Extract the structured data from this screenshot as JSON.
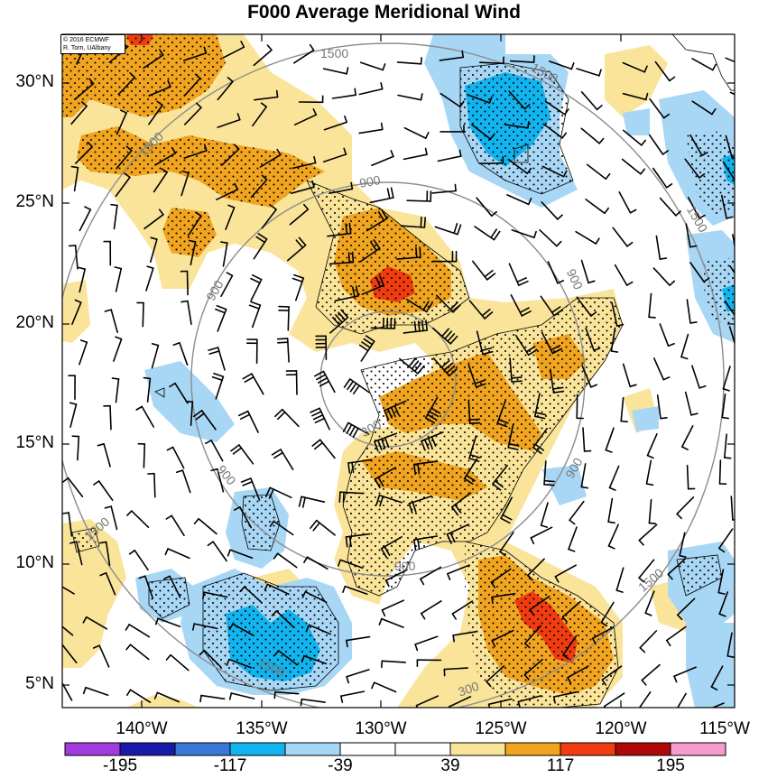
{
  "title": "F000 Average Meridional Wind",
  "credit": {
    "line1": "© 2016 ECMWF",
    "line2": "R. Torn, UAlbany"
  },
  "lat_labels": [
    "30°N",
    "25°N",
    "20°N",
    "15°N",
    "10°N",
    "5°N"
  ],
  "lon_labels": [
    "140°W",
    "135°W",
    "130°W",
    "125°W",
    "120°W",
    "115°W"
  ],
  "colorbar": {
    "colors": [
      "#a13be0",
      "#1a1aa8",
      "#3a78d8",
      "#12b4ef",
      "#a8d6f5",
      "#ffffff",
      "#ffffff",
      "#fae49a",
      "#f0a420",
      "#f03c10",
      "#b00808",
      "#f79ad0"
    ],
    "labels": [
      "-195",
      "-117",
      "-39",
      "39",
      "117",
      "195"
    ]
  },
  "contour_labels": [
    "1500",
    "1500",
    "1500",
    "1500",
    "1500",
    "1500",
    "1500",
    "900",
    "900",
    "900",
    "900",
    "900",
    "900",
    "300",
    "300"
  ]
}
